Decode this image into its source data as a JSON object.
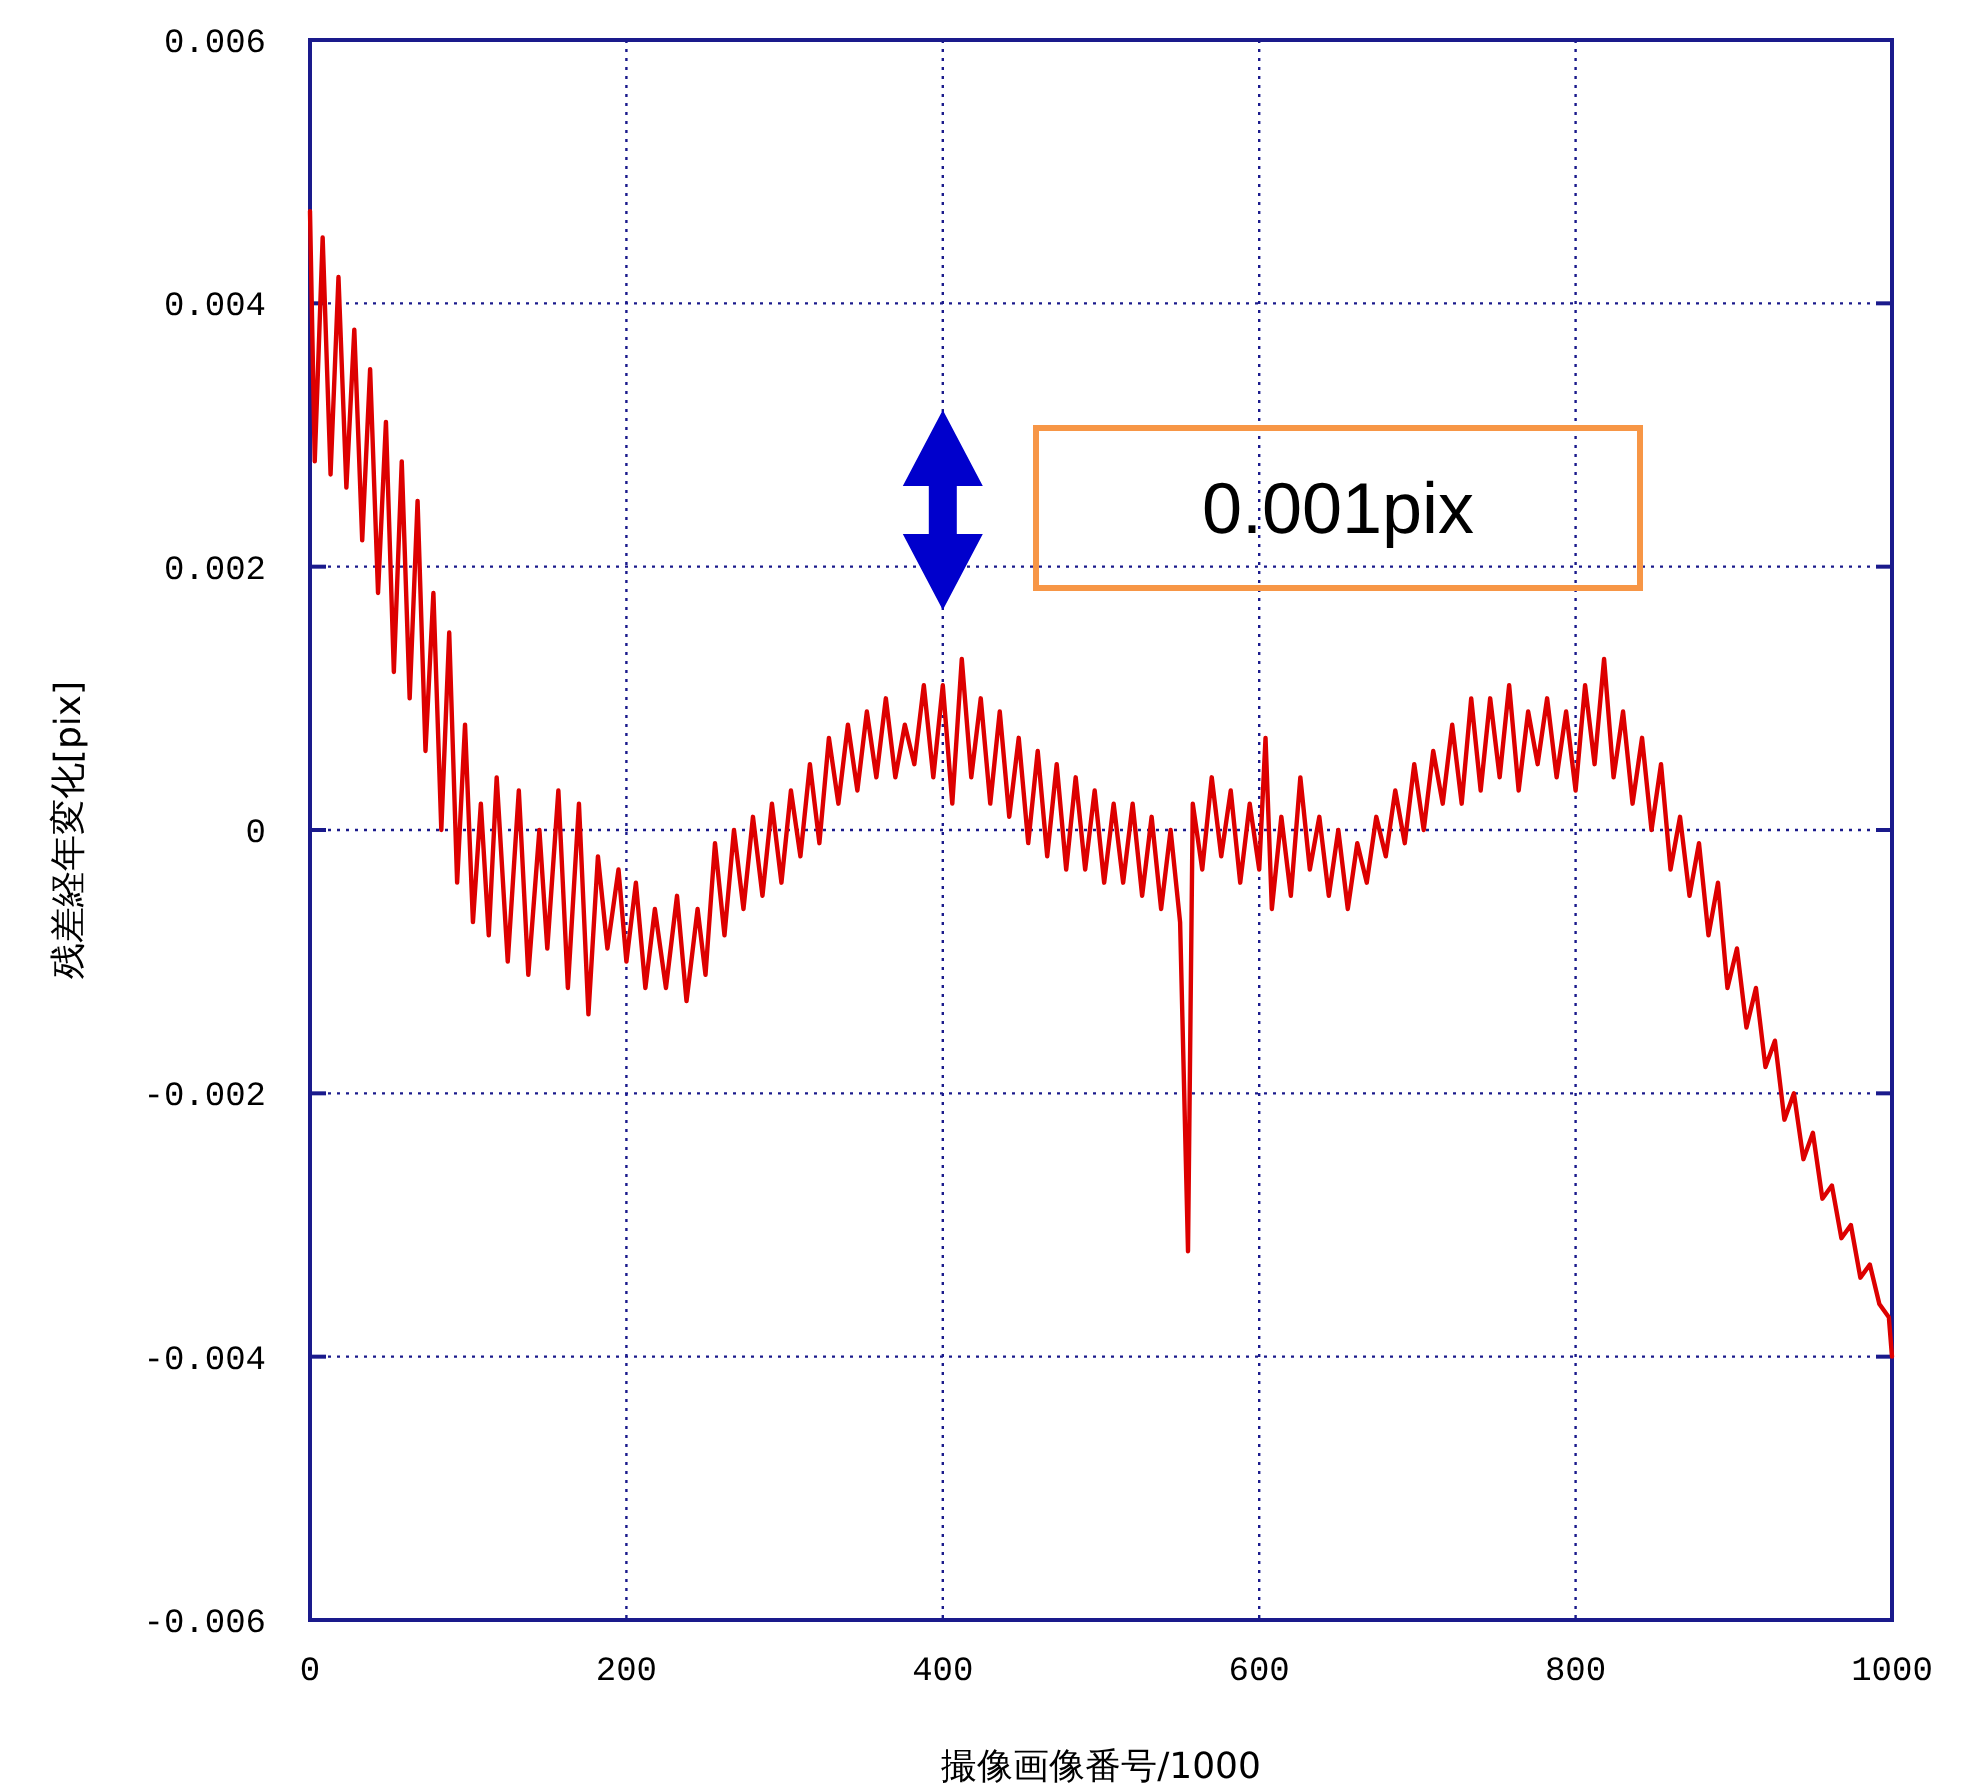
{
  "chart_data": {
    "type": "line",
    "xlabel": "撮像画像番号/1000",
    "ylabel": "残差経年変化[pix]",
    "annotations": [
      "0.001pix"
    ],
    "xlim": [
      0,
      1000
    ],
    "xticks": [
      0,
      200,
      400,
      600,
      800,
      1000
    ],
    "ylim": [
      -0.006,
      0.006
    ],
    "yticks": [
      -0.006,
      -0.004,
      -0.002,
      0,
      0.002,
      0.004,
      0.006
    ],
    "grid": true,
    "marker": "none",
    "line_style": "solid",
    "series": [
      {
        "color": "#dd0000",
        "x": [
          0,
          3,
          8,
          13,
          18,
          23,
          28,
          33,
          38,
          43,
          48,
          53,
          58,
          63,
          68,
          73,
          78,
          83,
          88,
          93,
          98,
          103,
          108,
          113,
          118,
          125,
          132,
          138,
          145,
          150,
          157,
          163,
          170,
          176,
          182,
          188,
          195,
          200,
          206,
          212,
          218,
          225,
          232,
          238,
          245,
          250,
          256,
          262,
          268,
          274,
          280,
          286,
          292,
          298,
          304,
          310,
          316,
          322,
          328,
          334,
          340,
          346,
          352,
          358,
          364,
          370,
          376,
          382,
          388,
          394,
          400,
          406,
          412,
          418,
          424,
          430,
          436,
          442,
          448,
          454,
          460,
          466,
          472,
          478,
          484,
          490,
          496,
          502,
          508,
          514,
          520,
          526,
          532,
          538,
          544,
          550,
          555,
          558,
          564,
          570,
          576,
          582,
          588,
          594,
          600,
          604,
          608,
          614,
          620,
          626,
          632,
          638,
          644,
          650,
          656,
          662,
          668,
          674,
          680,
          686,
          692,
          698,
          704,
          710,
          716,
          722,
          728,
          734,
          740,
          746,
          752,
          758,
          764,
          770,
          776,
          782,
          788,
          794,
          800,
          806,
          812,
          818,
          824,
          830,
          836,
          842,
          848,
          854,
          860,
          866,
          872,
          878,
          884,
          890,
          896,
          902,
          908,
          914,
          920,
          926,
          932,
          938,
          944,
          950,
          956,
          962,
          968,
          974,
          980,
          986,
          992,
          998,
          1000
        ],
        "values": [
          0.0047,
          0.0028,
          0.0045,
          0.0027,
          0.0042,
          0.0026,
          0.0038,
          0.0022,
          0.0035,
          0.0018,
          0.0031,
          0.0012,
          0.0028,
          0.001,
          0.0025,
          0.0006,
          0.0018,
          0.0,
          0.0015,
          -0.0004,
          0.0008,
          -0.0007,
          0.0002,
          -0.0008,
          0.0004,
          -0.001,
          0.0003,
          -0.0011,
          0.0,
          -0.0009,
          0.0003,
          -0.0012,
          0.0002,
          -0.0014,
          -0.0002,
          -0.0009,
          -0.0003,
          -0.001,
          -0.0004,
          -0.0012,
          -0.0006,
          -0.0012,
          -0.0005,
          -0.0013,
          -0.0006,
          -0.0011,
          -0.0001,
          -0.0008,
          0.0,
          -0.0006,
          0.0001,
          -0.0005,
          0.0002,
          -0.0004,
          0.0003,
          -0.0002,
          0.0005,
          -0.0001,
          0.0007,
          0.0002,
          0.0008,
          0.0003,
          0.0009,
          0.0004,
          0.001,
          0.0004,
          0.0008,
          0.0005,
          0.0011,
          0.0004,
          0.0011,
          0.0002,
          0.0013,
          0.0004,
          0.001,
          0.0002,
          0.0009,
          0.0001,
          0.0007,
          -0.0001,
          0.0006,
          -0.0002,
          0.0005,
          -0.0003,
          0.0004,
          -0.0003,
          0.0003,
          -0.0004,
          0.0002,
          -0.0004,
          0.0002,
          -0.0005,
          0.0001,
          -0.0006,
          0.0,
          -0.0007,
          -0.0032,
          0.0002,
          -0.0003,
          0.0004,
          -0.0002,
          0.0003,
          -0.0004,
          0.0002,
          -0.0003,
          0.0007,
          -0.0006,
          0.0001,
          -0.0005,
          0.0004,
          -0.0003,
          0.0001,
          -0.0005,
          0.0,
          -0.0006,
          -0.0001,
          -0.0004,
          0.0001,
          -0.0002,
          0.0003,
          -0.0001,
          0.0005,
          0.0,
          0.0006,
          0.0002,
          0.0008,
          0.0002,
          0.001,
          0.0003,
          0.001,
          0.0004,
          0.0011,
          0.0003,
          0.0009,
          0.0005,
          0.001,
          0.0004,
          0.0009,
          0.0003,
          0.0011,
          0.0005,
          0.0013,
          0.0004,
          0.0009,
          0.0002,
          0.0007,
          0.0,
          0.0005,
          -0.0003,
          0.0001,
          -0.0005,
          -0.0001,
          -0.0008,
          -0.0004,
          -0.0012,
          -0.0009,
          -0.0015,
          -0.0012,
          -0.0018,
          -0.0016,
          -0.0022,
          -0.002,
          -0.0025,
          -0.0023,
          -0.0028,
          -0.0027,
          -0.0031,
          -0.003,
          -0.0034,
          -0.0033,
          -0.0036,
          -0.0037,
          -0.004
        ]
      }
    ]
  }
}
